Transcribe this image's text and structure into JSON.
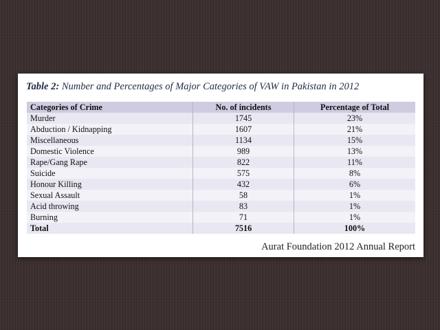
{
  "caption": {
    "label": "Table 2:",
    "text": "Number and Percentages of Major Categories of VAW in Pakistan in 2012"
  },
  "table": {
    "headers": [
      "Categories of Crime",
      "No. of incidents",
      "Percentage of Total"
    ],
    "rows": [
      [
        "Murder",
        "1745",
        "23%"
      ],
      [
        "Abduction / Kidnapping",
        "1607",
        "21%"
      ],
      [
        "Miscellaneous",
        "1134",
        "15%"
      ],
      [
        "Domestic Violence",
        "989",
        "13%"
      ],
      [
        "Rape/Gang Rape",
        "822",
        "11%"
      ],
      [
        "Suicide",
        "575",
        "8%"
      ],
      [
        "Honour Killing",
        "432",
        "6%"
      ],
      [
        "Sexual Assault",
        "58",
        "1%"
      ],
      [
        "Acid throwing",
        "83",
        "1%"
      ],
      [
        "Burning",
        "71",
        "1%"
      ]
    ],
    "total": [
      "Total",
      "7516",
      "100%"
    ]
  },
  "source": "Aurat Foundation 2012 Annual Report"
}
